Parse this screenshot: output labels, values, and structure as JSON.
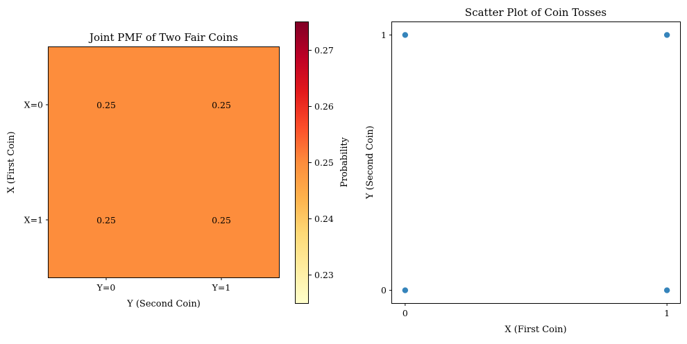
{
  "chart_data": [
    {
      "type": "heatmap",
      "title": "Joint PMF of Two Fair Coins",
      "xlabel": "Y (Second Coin)",
      "ylabel": "X (First Coin)",
      "x_categories": [
        "Y=0",
        "Y=1"
      ],
      "y_categories": [
        "X=0",
        "X=1"
      ],
      "values": [
        [
          0.25,
          0.25
        ],
        [
          0.25,
          0.25
        ]
      ],
      "value_labels": [
        [
          "0.25",
          "0.25"
        ],
        [
          "0.25",
          "0.25"
        ]
      ],
      "cell_color": "#fd8d3c",
      "colorbar": {
        "label": "Probability",
        "range": [
          0.225,
          0.275
        ],
        "ticks": [
          0.23,
          0.24,
          0.25,
          0.26,
          0.27
        ],
        "tick_labels": [
          "0.23",
          "0.24",
          "0.25",
          "0.26",
          "0.27"
        ],
        "colormap": "YlOrRd"
      }
    },
    {
      "type": "scatter",
      "title": "Scatter Plot of Coin Tosses",
      "xlabel": "X (First Coin)",
      "ylabel": "Y (Second Coin)",
      "xlim": [
        -0.05,
        1.05
      ],
      "ylim": [
        -0.05,
        1.05
      ],
      "x_ticks": [
        0,
        1
      ],
      "x_tick_labels": [
        "0",
        "1"
      ],
      "y_ticks": [
        0,
        1
      ],
      "y_tick_labels": [
        "0",
        "1"
      ],
      "points": [
        {
          "x": 0,
          "y": 0
        },
        {
          "x": 0,
          "y": 1
        },
        {
          "x": 1,
          "y": 0
        },
        {
          "x": 1,
          "y": 1
        }
      ],
      "marker_color": "#1f77b4"
    }
  ]
}
